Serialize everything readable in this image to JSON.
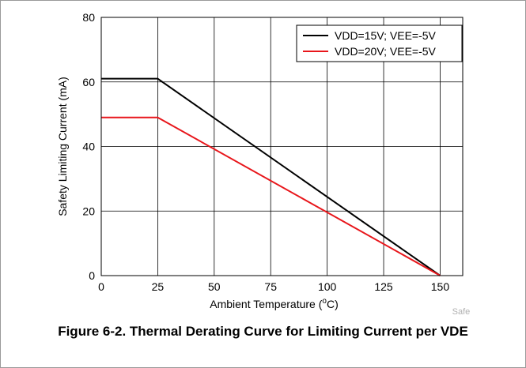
{
  "caption": "Figure 6-2. Thermal Derating Curve for Limiting Current per VDE",
  "watermark": "Safe",
  "chart_data": {
    "type": "line",
    "title": "",
    "xlabel": "Ambient Temperature (",
    "xlabel_sup": "o",
    "xlabel_tail": "C)",
    "ylabel": "Safety Limiting Current (mA)",
    "xlim": [
      0,
      160
    ],
    "ylim": [
      0,
      80
    ],
    "xticks": [
      0,
      25,
      50,
      75,
      100,
      125,
      150
    ],
    "yticks": [
      0,
      20,
      40,
      60,
      80
    ],
    "grid": true,
    "legend_position": "top-right",
    "series": [
      {
        "name": "VDD=15V; VEE=-5V",
        "color": "#000000",
        "x": [
          0,
          25,
          150
        ],
        "y": [
          61,
          61,
          0
        ]
      },
      {
        "name": "VDD=20V; VEE=-5V",
        "color": "#e8161b",
        "x": [
          0,
          25,
          150
        ],
        "y": [
          49,
          49,
          0
        ]
      }
    ]
  }
}
